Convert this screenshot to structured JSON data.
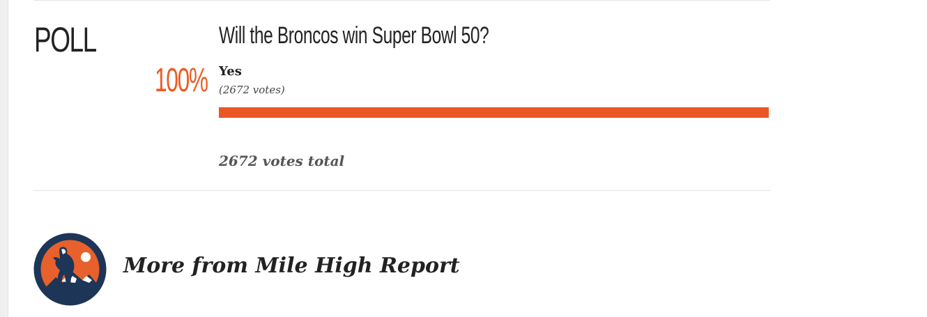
{
  "poll": {
    "label": "POLL",
    "question": "Will the Broncos win Super Bowl 50?",
    "options": [
      {
        "percent_label": "100%",
        "share": 1.0,
        "label": "Yes",
        "votes_label": "(2672 votes)"
      }
    ],
    "total_label": "2672 votes total"
  },
  "more_from": {
    "label": "More from Mile High Report",
    "logo_icon": "mile-high-report-logo"
  },
  "colors": {
    "accent": "#ea5624",
    "logo_navy": "#1d3557",
    "logo_orange": "#e8602c"
  }
}
